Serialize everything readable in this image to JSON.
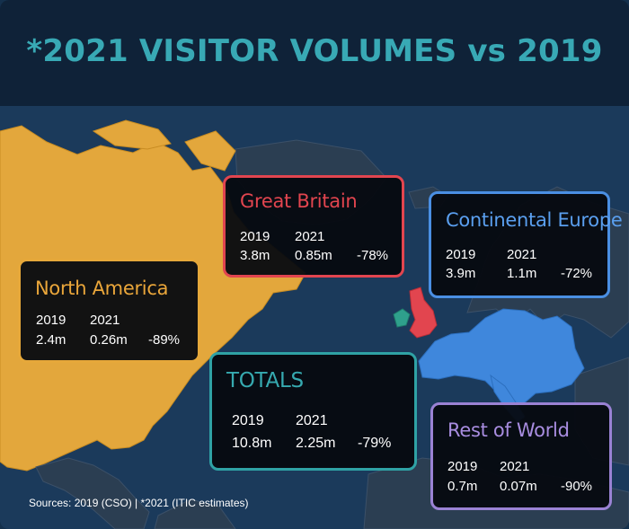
{
  "title": "*2021 VISITOR VOLUMES vs 2019",
  "regions": {
    "great_britain": {
      "name": "Great Britain",
      "year_a": "2019",
      "year_b": "2021",
      "value_a": "3.8m",
      "value_b": "0.85m",
      "change": "-78%",
      "color": "#e2454f"
    },
    "continental_europe": {
      "name": "Continental Europe",
      "year_a": "2019",
      "year_b": "2021",
      "value_a": "3.9m",
      "value_b": "1.1m",
      "change": "-72%",
      "color": "#4a8fe3"
    },
    "north_america": {
      "name": "North America",
      "year_a": "2019",
      "year_b": "2021",
      "value_a": "2.4m",
      "value_b": "0.26m",
      "change": "-89%",
      "color": "#e6a83a"
    },
    "totals": {
      "name": "TOTALS",
      "year_a": "2019",
      "year_b": "2021",
      "value_a": "10.8m",
      "value_b": "2.25m",
      "change": "-79%",
      "color": "#2fa2a5"
    },
    "rest_of_world": {
      "name": "Rest of World",
      "year_a": "2019",
      "year_b": "2021",
      "value_a": "0.7m",
      "value_b": "0.07m",
      "change": "-90%",
      "color": "#9a82d4"
    }
  },
  "sources": "Sources: 2019 (CSO) | *2021 (ITIC estimates)",
  "colors": {
    "header_bg": "#0f2238",
    "title": "#38a9b5",
    "ocean": "#1b3a5b",
    "land": "#2b3e52",
    "north_america_land": "#e3a73c",
    "great_britain_land": "#e2454f",
    "ireland_land": "#2fa08c",
    "europe_land": "#3f87dc"
  }
}
